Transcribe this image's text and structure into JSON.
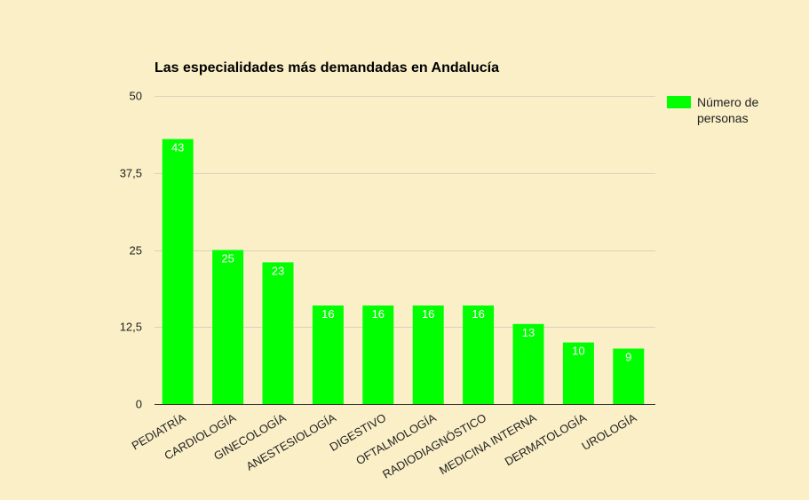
{
  "chart_data": {
    "type": "bar",
    "title": "Las especialidades más demandadas en Andalucía",
    "categories": [
      "PEDIATRÍA",
      "CARDIOLOGÍA",
      "GINECOLOGÍA",
      "ANESTESIOLOGÍA",
      "DIGESTIVO",
      "OFTALMOLOGÍA",
      "RADIODIAGNÓSTICO",
      "MEDICINA INTERNA",
      "DERMATOLOGÍA",
      "UROLOGÍA"
    ],
    "series": [
      {
        "name": "Número de personas",
        "values": [
          43,
          25,
          23,
          16,
          16,
          16,
          16,
          13,
          10,
          9
        ]
      }
    ],
    "data_labels": [
      "43",
      "25",
      "23",
      "16",
      "16",
      "16",
      "16",
      "13",
      "10",
      "9"
    ],
    "yticks": [
      0,
      12.5,
      25,
      37.5,
      50
    ],
    "ytick_labels": [
      "0",
      "12,5",
      "25",
      "37,5",
      "50"
    ],
    "ylim": [
      0,
      50
    ],
    "grid": true,
    "legend_position": "right",
    "legend_lines": [
      "Número de",
      "personas"
    ],
    "colors": {
      "bar": "#00ff00",
      "background": "#fbefc7",
      "gridline": "#d9d3bd"
    }
  }
}
